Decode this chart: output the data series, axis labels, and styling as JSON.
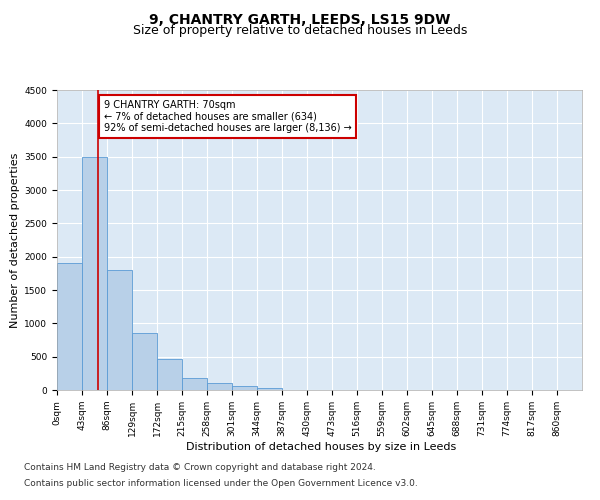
{
  "title": "9, CHANTRY GARTH, LEEDS, LS15 9DW",
  "subtitle": "Size of property relative to detached houses in Leeds",
  "xlabel": "Distribution of detached houses by size in Leeds",
  "ylabel": "Number of detached properties",
  "bin_labels": [
    "0sqm",
    "43sqm",
    "86sqm",
    "129sqm",
    "172sqm",
    "215sqm",
    "258sqm",
    "301sqm",
    "344sqm",
    "387sqm",
    "430sqm",
    "473sqm",
    "516sqm",
    "559sqm",
    "602sqm",
    "645sqm",
    "688sqm",
    "731sqm",
    "774sqm",
    "817sqm",
    "860sqm"
  ],
  "bar_heights": [
    1900,
    3500,
    1800,
    850,
    460,
    175,
    100,
    60,
    30,
    0,
    0,
    0,
    0,
    0,
    0,
    0,
    0,
    0,
    0,
    0
  ],
  "bar_color": "#b8d0e8",
  "bar_edge_color": "#5b9bd5",
  "vline_x": 70,
  "annotation_text": "9 CHANTRY GARTH: 70sqm\n← 7% of detached houses are smaller (634)\n92% of semi-detached houses are larger (8,136) →",
  "annotation_box_color": "#ffffff",
  "annotation_box_edge": "#cc0000",
  "ylim": [
    0,
    4500
  ],
  "xlim_max": 903,
  "bin_width": 43,
  "footer_line1": "Contains HM Land Registry data © Crown copyright and database right 2024.",
  "footer_line2": "Contains public sector information licensed under the Open Government Licence v3.0.",
  "plot_bg_color": "#dce9f5",
  "vline_color": "#cc0000",
  "title_fontsize": 10,
  "subtitle_fontsize": 9,
  "axis_label_fontsize": 8,
  "tick_fontsize": 6.5,
  "footer_fontsize": 6.5,
  "yticks": [
    0,
    500,
    1000,
    1500,
    2000,
    2500,
    3000,
    3500,
    4000,
    4500
  ]
}
